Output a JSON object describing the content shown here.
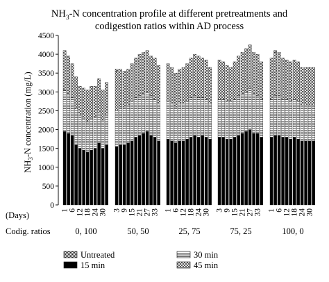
{
  "chart_data": {
    "type": "bar",
    "stacked": true,
    "title_line1_parts": [
      "NH",
      "3",
      "-N concentration profile at different pretreatments and"
    ],
    "title_line2": "codigestion ratios within AD process",
    "ylabel_parts": [
      "NH",
      "3",
      "-N concentration (mg/L)"
    ],
    "ylim": [
      0,
      4500
    ],
    "yticks": [
      "0",
      "500",
      "1000",
      "1500",
      "2000",
      "2500",
      "3000",
      "3500",
      "4000",
      "4500"
    ],
    "ytick_values": [
      0,
      500,
      1000,
      1500,
      2000,
      2500,
      3000,
      3500,
      4000,
      4500
    ],
    "x_row_label": "(Days)",
    "group_row_label": "Codig. ratios",
    "day_labels": [
      "1",
      "6",
      "12",
      "18",
      "24",
      "30"
    ],
    "day_labels_alt": [
      "3",
      "9",
      "15",
      "21",
      "27",
      "33"
    ],
    "series": [
      {
        "name": "Untreated",
        "pattern": "dots"
      },
      {
        "name": "15 min",
        "pattern": "solid"
      },
      {
        "name": "30 min",
        "pattern": "hlines"
      },
      {
        "name": "45 min",
        "pattern": "cross"
      }
    ],
    "groups": [
      {
        "label": "0, 100",
        "day_axis": "primary",
        "totals": [
          3550,
          3520,
          3280,
          2800,
          2550,
          2700,
          2800,
          2950,
          2900,
          3300,
          2900,
          3250
        ],
        "stacks": [
          [
            1950,
            1900,
            1850,
            1600,
            1500,
            1450,
            1400,
            1450,
            1500,
            1650,
            1500,
            1600
          ],
          [
            1100,
            1050,
            1000,
            950,
            900,
            850,
            800,
            850,
            850,
            800,
            750,
            800
          ],
          [
            1050,
            1000,
            900,
            850,
            750,
            800,
            850,
            850,
            800,
            900,
            800,
            850
          ]
        ]
      },
      {
        "label": "50, 50",
        "day_axis": "alt",
        "totals": [
          3600,
          3300,
          3100,
          3200,
          3400,
          3650,
          3800,
          3950,
          4050,
          3700,
          3750,
          3350
        ],
        "stacks": [
          [
            1550,
            1600,
            1600,
            1650,
            1700,
            1800,
            1850,
            1900,
            1950,
            1850,
            1800,
            1700
          ],
          [
            950,
            1000,
            1000,
            1000,
            1050,
            1050,
            1050,
            1050,
            1050,
            1050,
            1000,
            1000
          ],
          [
            1050,
            1000,
            950,
            950,
            1000,
            1050,
            1100,
            1100,
            1100,
            1050,
            1100,
            1000
          ]
        ]
      },
      {
        "label": "25, 75",
        "day_axis": "primary",
        "totals": [
          3450,
          3200,
          2950,
          3000,
          3150,
          3200,
          3450,
          3600,
          3700,
          3550,
          3500,
          3100
        ],
        "stacks": [
          [
            1750,
            1700,
            1650,
            1700,
            1700,
            1750,
            1800,
            1850,
            1800,
            1850,
            1800,
            1750
          ],
          [
            1000,
            1000,
            950,
            1000,
            1000,
            1000,
            1050,
            1050,
            1050,
            1000,
            1000,
            950
          ],
          [
            1000,
            950,
            900,
            900,
            950,
            1000,
            1050,
            1100,
            1100,
            1050,
            1050,
            950
          ]
        ]
      },
      {
        "label": "75, 25",
        "day_axis": "alt",
        "totals": [
          3750,
          3500,
          3300,
          3200,
          3450,
          3600,
          3800,
          4000,
          4150,
          3750,
          3700,
          3500
        ],
        "stacks": [
          [
            1800,
            1800,
            1750,
            1750,
            1800,
            1850,
            1900,
            1950,
            2000,
            1900,
            1900,
            1800
          ],
          [
            1000,
            1000,
            1000,
            1000,
            1000,
            1050,
            1050,
            1050,
            1100,
            1050,
            1000,
            1000
          ],
          [
            1050,
            1000,
            950,
            900,
            1000,
            1050,
            1100,
            1150,
            1150,
            1100,
            1100,
            1000
          ]
        ]
      },
      {
        "label": "100, 0",
        "day_axis": "primary",
        "totals": [
          3900,
          4100,
          4000,
          3800,
          3650,
          3600,
          3650,
          3550,
          3400,
          3400,
          3400,
          3400
        ],
        "stacks": [
          [
            1800,
            1850,
            1850,
            1800,
            1800,
            1750,
            1800,
            1750,
            1700,
            1700,
            1700,
            1700
          ],
          [
            1000,
            1050,
            1050,
            1000,
            1000,
            1000,
            1000,
            1000,
            950,
            950,
            950,
            950
          ],
          [
            1100,
            1150,
            1150,
            1100,
            1050,
            1050,
            1050,
            1050,
            1000,
            1000,
            1000,
            1000
          ]
        ]
      }
    ]
  }
}
